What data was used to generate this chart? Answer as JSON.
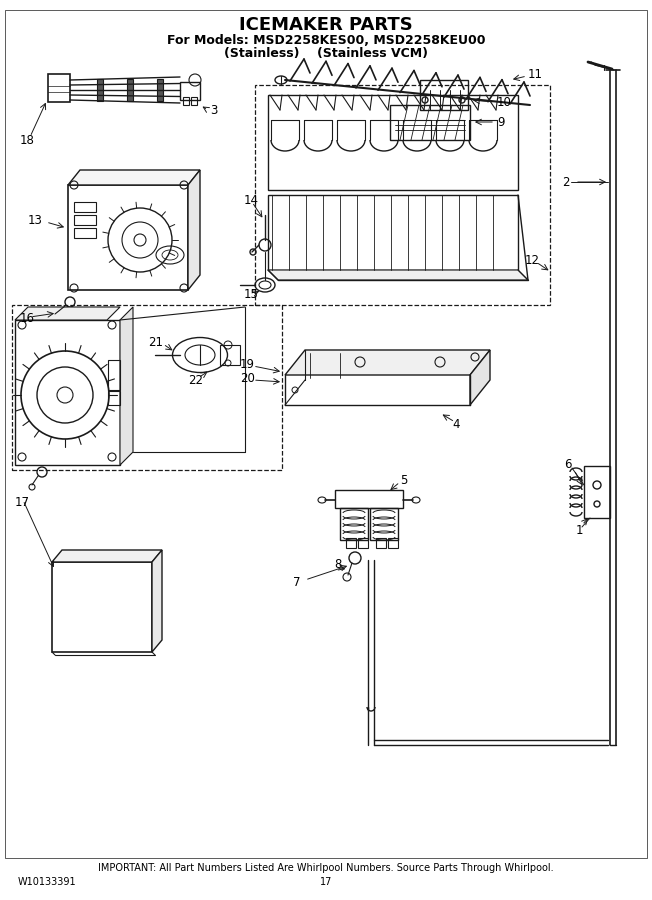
{
  "title": "ICEMAKER PARTS",
  "subtitle1": "For Models: MSD2258KES00, MSD2258KEU00",
  "subtitle2": "(Stainless)    (Stainless VCM)",
  "footer": "IMPORTANT: All Part Numbers Listed Are Whirlpool Numbers. Source Parts Through Whirlpool.",
  "part_number": "W10133391",
  "page": "17",
  "bg_color": "#ffffff",
  "line_color": "#1a1a1a",
  "label_color": "#000000",
  "title_fs": 13,
  "subtitle_fs": 9,
  "label_fs": 8.5,
  "footer_fs": 7
}
